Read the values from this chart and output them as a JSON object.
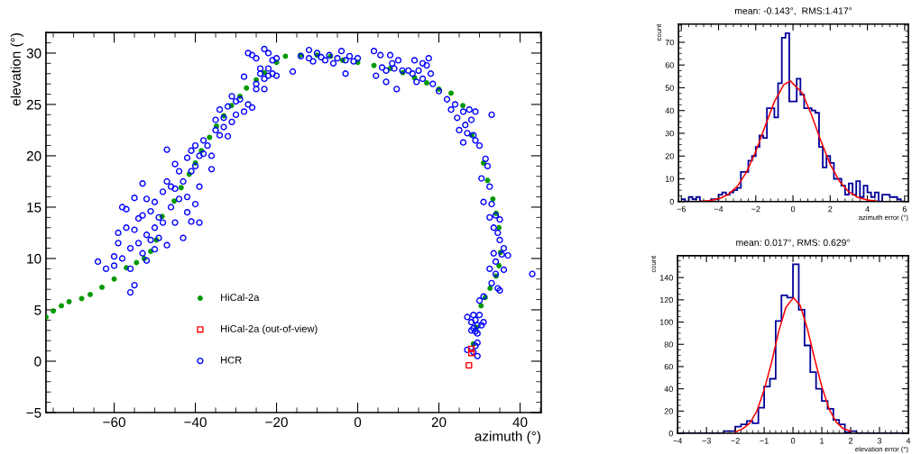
{
  "chart_data": [
    {
      "type": "scatter",
      "xlabel": "azimuth (°)",
      "ylabel": "elevation (°)",
      "xlim": [
        -76.8,
        45.2
      ],
      "ylim": [
        -5,
        32
      ],
      "xticks": [
        -60,
        -40,
        -20,
        0,
        20,
        40
      ],
      "yticks": [
        -5,
        0,
        5,
        10,
        15,
        20,
        25,
        30
      ],
      "grid": false,
      "legend": "bottom center",
      "series": [
        {
          "name": "HiCal-2a",
          "color": "#009900",
          "marker": "circle",
          "x": [
            -76.8,
            -75,
            -73,
            -71.1,
            -68,
            -65.9,
            -63,
            -60,
            -57,
            -54.5,
            -52.6,
            -51,
            -49.6,
            -48.2,
            -45.2,
            -43.5,
            -41.5,
            -40,
            -38.5,
            -36.5,
            -34.8,
            -33,
            -31.1,
            -29,
            -27.4,
            -25,
            -23,
            -20,
            -17.8,
            -14.1,
            -10,
            -6.7,
            -3.7,
            0,
            4,
            8,
            11.1,
            14,
            17,
            20,
            23,
            25.9,
            28.1,
            31.0,
            32,
            33.3,
            34.1,
            34.8,
            35.2,
            34.8,
            34.1,
            32.6,
            31.4,
            30.4,
            29.3,
            28.5
          ],
          "values": [
            4.3,
            4.9,
            5.4,
            5.8,
            6.1,
            6.5,
            7.2,
            8.0,
            9.1,
            9.6,
            10.0,
            10.7,
            11.8,
            14.1,
            15.6,
            16.9,
            18.2,
            19.3,
            20.5,
            21.8,
            22.9,
            23.9,
            24.9,
            25.8,
            26.6,
            27.4,
            28.1,
            29.1,
            29.7,
            29.8,
            29.8,
            29.7,
            29.3,
            29.1,
            28.8,
            28.5,
            28.1,
            27.6,
            27.1,
            26.5,
            26.1,
            24.9,
            22.0,
            19.3,
            17.6,
            15.8,
            14.4,
            13.0,
            10.6,
            9.3,
            8.3,
            7.1,
            6.2,
            5.4,
            3.3,
            1.7
          ]
        },
        {
          "name": "HiCal-2a (out-of-view)",
          "color": "#ff0000",
          "marker": "square",
          "x": [
            28.0,
            28.0,
            27.4
          ],
          "values": [
            1.2,
            0.8,
            -0.4
          ]
        },
        {
          "name": "HCR",
          "color": "#0000ff",
          "marker": "circle",
          "x": [
            -64,
            -62,
            -60,
            -60,
            -59,
            -59,
            -58,
            -58,
            -57,
            -57,
            -56,
            -56,
            -56,
            -55,
            -55,
            -55,
            -54,
            -54,
            -53,
            -53,
            -53,
            -52,
            -52,
            -52,
            -51,
            -51,
            -50,
            -50,
            -50,
            -49,
            -49,
            -48,
            -48,
            -47,
            -47,
            -47,
            -46,
            -46,
            -45,
            -45,
            -45,
            -44,
            -44,
            -43,
            -43,
            -42,
            -42,
            -42,
            -41,
            -41,
            -41,
            -40,
            -40,
            -40,
            -39,
            -39,
            -39,
            -38,
            -38,
            -37,
            -36,
            -36,
            -35,
            -35,
            -34,
            -34,
            -33,
            -33,
            -32,
            -32,
            -31,
            -31,
            -30,
            -30,
            -29,
            -28,
            -28,
            -27,
            -27,
            -26,
            -26,
            -25,
            -25,
            -25,
            -24,
            -24,
            -23,
            -23,
            -23,
            -22,
            -22,
            -22,
            -21,
            -21,
            -20,
            -20,
            -16,
            -14,
            -12,
            -12,
            -11,
            -10,
            -9,
            -8,
            -7,
            -6,
            -5,
            -4,
            -3,
            -3,
            -2,
            -1,
            0,
            4,
            4.5,
            5.6,
            6,
            7,
            7,
            8,
            8.5,
            9,
            9.6,
            10,
            11,
            12.5,
            13.5,
            14,
            14.5,
            15,
            16,
            16,
            17,
            17.5,
            18,
            18.5,
            20,
            22,
            23,
            24,
            24.5,
            25,
            26,
            26.5,
            27,
            27.5,
            28,
            28.5,
            29,
            29,
            26,
            30,
            33,
            31.5,
            32,
            30.5,
            32.5,
            31,
            33,
            32.5,
            34,
            35,
            33.5,
            34.5,
            35,
            36,
            35.5,
            33.5,
            37,
            34,
            32.5,
            34,
            36,
            33,
            35,
            34.5,
            43,
            31,
            30,
            27,
            28,
            28.5,
            29,
            29.5,
            30,
            28.5,
            29,
            29.5,
            29.5,
            27,
            29.5,
            29,
            28.5,
            28,
            30.5,
            31
          ],
          "values": [
            9.7,
            9.0,
            10.2,
            9.3,
            11.5,
            12.5,
            15,
            10.0,
            13,
            14.8,
            6.7,
            11,
            9,
            15.9,
            12.8,
            7.4,
            13.9,
            11.5,
            17.3,
            14.2,
            10.5,
            15.8,
            12.3,
            9.8,
            14.6,
            11.8,
            15.5,
            13,
            10.9,
            14,
            12,
            13.5,
            16.5,
            20.6,
            17.5,
            11.3,
            17,
            15,
            19.2,
            16.8,
            13.5,
            18.5,
            15.8,
            17.5,
            12,
            19.8,
            16,
            14.5,
            20.5,
            18.5,
            13.6,
            21,
            19,
            15.3,
            20,
            17,
            13.5,
            21.5,
            20.2,
            21,
            20,
            18.7,
            23.5,
            22.5,
            24.5,
            22,
            23.7,
            22.8,
            24.8,
            21.9,
            25.8,
            23.3,
            25.3,
            24,
            25.5,
            24.3,
            27.7,
            25,
            30,
            29.8,
            24.7,
            29.5,
            27,
            26.5,
            28.5,
            28,
            30.4,
            27.5,
            26.5,
            30,
            28.5,
            27.8,
            29.3,
            28,
            29.5,
            27.8,
            28.2,
            29.7,
            30.3,
            29.5,
            29.2,
            30,
            29.6,
            29.3,
            29.8,
            29.0,
            29.5,
            30.2,
            28,
            29.3,
            29.7,
            29.2,
            29.5,
            30.2,
            27.8,
            29.8,
            28.6,
            27.2,
            28.3,
            29.8,
            29,
            28.5,
            26.5,
            29.3,
            28.3,
            28.3,
            28,
            29.3,
            27.2,
            28.3,
            29,
            27.5,
            28.8,
            29.5,
            28,
            27,
            26.3,
            25.5,
            24.5,
            25,
            23.7,
            22.5,
            24.3,
            23,
            22.2,
            24.5,
            23.5,
            22,
            21.5,
            24.3,
            21.3,
            21,
            24,
            19.7,
            19,
            17.8,
            17,
            15.5,
            15.3,
            14,
            14.2,
            13.8,
            13,
            12.5,
            11.8,
            11,
            10.4,
            10.5,
            10.3,
            9.7,
            9,
            8.5,
            8.9,
            7.6,
            6.9,
            7.1,
            8.5,
            6.3,
            5.9,
            4.3,
            3.8,
            4.5,
            4.0,
            3.5,
            4.5,
            3.2,
            2.9,
            2.7,
            1.8,
            1.1,
            0.5,
            1.5,
            0.9,
            3.0,
            3.5,
            3.8
          ]
        }
      ]
    },
    {
      "type": "histogram",
      "title": "mean: -0.143°,  RMS:1.417°",
      "xlabel": "azimuth error (°)",
      "ylabel": "count",
      "xlim": [
        -6.15,
        6.2
      ],
      "ylim": [
        0,
        78
      ],
      "xticks": [
        -6,
        -4,
        -2,
        0,
        2,
        4,
        6
      ],
      "yticks": [
        0,
        10,
        20,
        30,
        40,
        50,
        60,
        70
      ],
      "grid": false,
      "series": [
        {
          "type": "histogram",
          "color": "#000099",
          "bins": [
            -6,
            -5.8,
            -5.6,
            -5.4,
            -5.2,
            -5,
            -4.8,
            -4.6,
            -4.4,
            -4.2,
            -4,
            -3.8,
            -3.6,
            -3.4,
            -3.2,
            -3,
            -2.8,
            -2.6,
            -2.4,
            -2.2,
            -2,
            -1.8,
            -1.6,
            -1.4,
            -1.2,
            -1,
            -0.8,
            -0.6,
            -0.4,
            -0.2,
            0,
            0.2,
            0.4,
            0.6,
            0.8,
            1,
            1.2,
            1.4,
            1.6,
            1.8,
            2,
            2.2,
            2.4,
            2.6,
            2.8,
            3,
            3.2,
            3.4,
            3.6,
            3.8,
            4,
            4.2,
            4.4,
            4.6,
            4.8,
            5,
            5.2,
            5.4,
            5.6,
            5.8,
            6
          ],
          "values": [
            1,
            0,
            2,
            1,
            2,
            0,
            0,
            0,
            1,
            1,
            3,
            4,
            3,
            4,
            5,
            6,
            13,
            13,
            18,
            20,
            24,
            29,
            28,
            41,
            41,
            37,
            52,
            72,
            74,
            44,
            44,
            54,
            47,
            41,
            41,
            40,
            39,
            24,
            15,
            20,
            17,
            10,
            10,
            7,
            3,
            8,
            3,
            9,
            2,
            7,
            4,
            2,
            4,
            0,
            3,
            3,
            2,
            2,
            1,
            0
          ]
        },
        {
          "type": "line",
          "color": "#ff0000",
          "x": [
            -5,
            -4.5,
            -4,
            -3.5,
            -3,
            -2.5,
            -2,
            -1.5,
            -1,
            -0.5,
            -0.143,
            0.5,
            1,
            1.5,
            2,
            2.5,
            3,
            3.5,
            4,
            4.5
          ],
          "values": [
            0.1,
            0.4,
            1.2,
            3.0,
            6.6,
            12.9,
            22.0,
            33.1,
            43.9,
            51.3,
            53,
            47.7,
            38.0,
            26.6,
            16.4,
            8.9,
            4.3,
            1.8,
            0.7,
            0.2
          ]
        }
      ]
    },
    {
      "type": "histogram",
      "title": "mean: 0.017°, RMS: 0.629°",
      "xlabel": "elevation error (°)",
      "ylabel": "count",
      "xlim": [
        -4,
        4
      ],
      "ylim": [
        0,
        159.6
      ],
      "xticks": [
        -4,
        -3,
        -2,
        -1,
        0,
        1,
        2,
        3,
        4
      ],
      "yticks": [
        0,
        20,
        40,
        60,
        80,
        100,
        120,
        140
      ],
      "grid": false,
      "series": [
        {
          "type": "histogram",
          "color": "#000099",
          "bins": [
            -4,
            -3.8,
            -3.6,
            -3.4,
            -3.2,
            -3,
            -2.8,
            -2.6,
            -2.4,
            -2.2,
            -2,
            -1.8,
            -1.6,
            -1.4,
            -1.2,
            -1,
            -0.8,
            -0.6,
            -0.4,
            -0.2,
            0,
            0.2,
            0.4,
            0.6,
            0.8,
            1,
            1.2,
            1.4,
            1.6,
            1.8,
            2,
            2.2,
            2.4,
            2.6,
            2.8,
            3,
            3.2,
            3.4,
            3.6,
            3.8,
            4
          ],
          "values": [
            0,
            0,
            0,
            0,
            0,
            0,
            0,
            0,
            2,
            2,
            6,
            8,
            11,
            9,
            23,
            42,
            49,
            101,
            124,
            122,
            152,
            111,
            79,
            55,
            40,
            29,
            22,
            12,
            8,
            1,
            2,
            0,
            0,
            0,
            0,
            0,
            0,
            0,
            0,
            0
          ]
        },
        {
          "type": "line",
          "color": "#ff0000",
          "x": [
            -2,
            -1.75,
            -1.5,
            -1.25,
            -1,
            -0.75,
            -0.5,
            -0.25,
            0.017,
            0.25,
            0.5,
            0.75,
            1,
            1.25,
            1.5,
            1.75,
            2
          ],
          "values": [
            1,
            4,
            9,
            20,
            39,
            63,
            91,
            113,
            122,
            115,
            94,
            67,
            42,
            22,
            10,
            4,
            2
          ]
        }
      ]
    }
  ]
}
